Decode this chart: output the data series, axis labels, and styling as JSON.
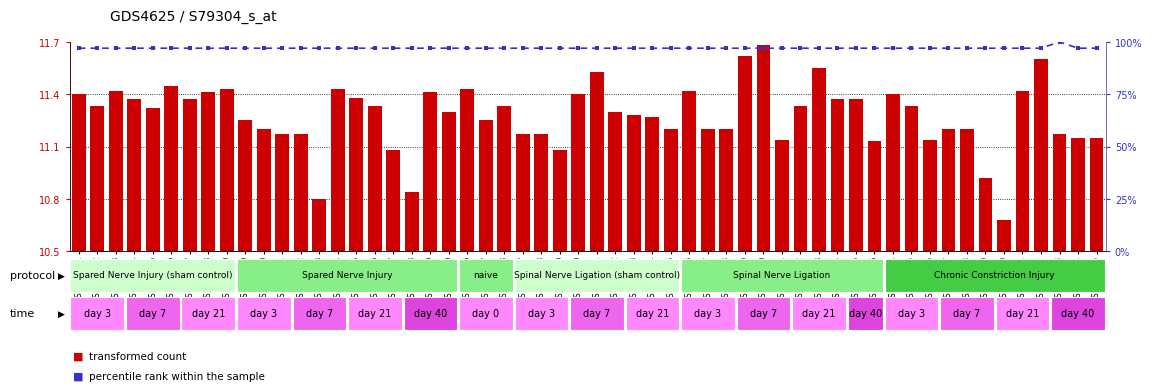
{
  "title": "GDS4625 / S79304_s_at",
  "samples": [
    "GSM761261",
    "GSM761262",
    "GSM761263",
    "GSM761264",
    "GSM761265",
    "GSM761266",
    "GSM761267",
    "GSM761268",
    "GSM761269",
    "GSM761249",
    "GSM761250",
    "GSM761251",
    "GSM761252",
    "GSM761253",
    "GSM761254",
    "GSM761255",
    "GSM761256",
    "GSM761257",
    "GSM761258",
    "GSM761259",
    "GSM761260",
    "GSM761246",
    "GSM761247",
    "GSM761248",
    "GSM761237",
    "GSM761238",
    "GSM761239",
    "GSM761240",
    "GSM761241",
    "GSM761242",
    "GSM761243",
    "GSM761244",
    "GSM761245",
    "GSM761226",
    "GSM761227",
    "GSM761228",
    "GSM761229",
    "GSM761230",
    "GSM761231",
    "GSM761232",
    "GSM761233",
    "GSM761234",
    "GSM761235",
    "GSM761236",
    "GSM761214",
    "GSM761215",
    "GSM761216",
    "GSM761217",
    "GSM761218",
    "GSM761219",
    "GSM761220",
    "GSM761221",
    "GSM761222",
    "GSM761223",
    "GSM761224",
    "GSM761225"
  ],
  "bar_values": [
    11.4,
    11.33,
    11.42,
    11.37,
    11.32,
    11.45,
    11.37,
    11.41,
    11.43,
    11.25,
    11.2,
    11.17,
    11.17,
    10.8,
    11.43,
    11.38,
    11.33,
    11.08,
    10.84,
    11.41,
    11.3,
    11.43,
    11.25,
    11.33,
    11.17,
    11.17,
    11.08,
    11.4,
    11.53,
    11.3,
    11.28,
    11.27,
    11.2,
    11.42,
    11.2,
    11.2,
    11.62,
    11.68,
    11.14,
    11.33,
    11.55,
    11.37,
    11.37,
    11.13,
    11.4,
    11.33,
    11.14,
    11.2,
    11.2,
    10.92,
    10.68,
    11.42,
    11.6,
    11.17,
    11.15,
    11.15
  ],
  "percentile_values": [
    97,
    97,
    97,
    97,
    97,
    97,
    97,
    97,
    97,
    97,
    97,
    97,
    97,
    97,
    97,
    97,
    97,
    97,
    97,
    97,
    97,
    97,
    97,
    97,
    97,
    97,
    97,
    97,
    97,
    97,
    97,
    97,
    97,
    97,
    97,
    97,
    97,
    97,
    97,
    97,
    97,
    97,
    97,
    97,
    97,
    97,
    97,
    97,
    97,
    97,
    97,
    97,
    97,
    100,
    97,
    97
  ],
  "ylim_left": [
    10.5,
    11.7
  ],
  "ylim_right": [
    0,
    100
  ],
  "yticks_left": [
    10.5,
    10.8,
    11.1,
    11.4,
    11.7
  ],
  "yticks_right": [
    0,
    25,
    50,
    75,
    100
  ],
  "bar_color": "#cc0000",
  "line_color": "#3333cc",
  "bg_color": "#ffffff",
  "protocol_groups": [
    {
      "label": "Spared Nerve Injury (sham control)",
      "start": 0,
      "end": 9,
      "color": "#ccffcc"
    },
    {
      "label": "Spared Nerve Injury",
      "start": 9,
      "end": 21,
      "color": "#88ee88"
    },
    {
      "label": "naive",
      "start": 21,
      "end": 24,
      "color": "#88ee88"
    },
    {
      "label": "Spinal Nerve Ligation (sham control)",
      "start": 24,
      "end": 33,
      "color": "#ccffcc"
    },
    {
      "label": "Spinal Nerve Ligation",
      "start": 33,
      "end": 44,
      "color": "#88ee88"
    },
    {
      "label": "Chronic Constriction Injury",
      "start": 44,
      "end": 56,
      "color": "#44cc44"
    }
  ],
  "time_groups": [
    {
      "label": "day 3",
      "start": 0,
      "end": 3,
      "color": "#ff88ff"
    },
    {
      "label": "day 7",
      "start": 3,
      "end": 6,
      "color": "#ee66ee"
    },
    {
      "label": "day 21",
      "start": 6,
      "end": 9,
      "color": "#ff88ff"
    },
    {
      "label": "day 3",
      "start": 9,
      "end": 12,
      "color": "#ff88ff"
    },
    {
      "label": "day 7",
      "start": 12,
      "end": 15,
      "color": "#ee66ee"
    },
    {
      "label": "day 21",
      "start": 15,
      "end": 18,
      "color": "#ff88ff"
    },
    {
      "label": "day 40",
      "start": 18,
      "end": 21,
      "color": "#dd44dd"
    },
    {
      "label": "day 0",
      "start": 21,
      "end": 24,
      "color": "#ff88ff"
    },
    {
      "label": "day 3",
      "start": 24,
      "end": 27,
      "color": "#ff88ff"
    },
    {
      "label": "day 7",
      "start": 27,
      "end": 30,
      "color": "#ee66ee"
    },
    {
      "label": "day 21",
      "start": 30,
      "end": 33,
      "color": "#ff88ff"
    },
    {
      "label": "day 3",
      "start": 33,
      "end": 36,
      "color": "#ff88ff"
    },
    {
      "label": "day 7",
      "start": 36,
      "end": 39,
      "color": "#ee66ee"
    },
    {
      "label": "day 21",
      "start": 39,
      "end": 42,
      "color": "#ff88ff"
    },
    {
      "label": "day 40",
      "start": 42,
      "end": 44,
      "color": "#dd44dd"
    },
    {
      "label": "day 3",
      "start": 44,
      "end": 47,
      "color": "#ff88ff"
    },
    {
      "label": "day 7",
      "start": 47,
      "end": 50,
      "color": "#ee66ee"
    },
    {
      "label": "day 21",
      "start": 50,
      "end": 53,
      "color": "#ff88ff"
    },
    {
      "label": "day 40",
      "start": 53,
      "end": 56,
      "color": "#dd44dd"
    }
  ],
  "title_fontsize": 10,
  "tick_fontsize": 5.5,
  "label_fontsize": 8,
  "legend_fontsize": 7.5,
  "protocol_fontsize": 6.5,
  "time_fontsize": 7
}
